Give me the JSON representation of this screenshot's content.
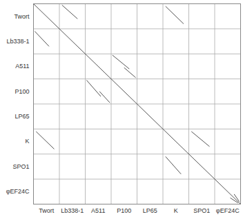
{
  "chart_data": {
    "type": "dotplot",
    "xlim": [
      0,
      8
    ],
    "ylim": [
      0,
      8
    ],
    "xticks": [
      {
        "value": 0.5,
        "label": "Twort"
      },
      {
        "value": 1.5,
        "label": "Lb338-1"
      },
      {
        "value": 2.5,
        "label": "A511"
      },
      {
        "value": 3.5,
        "label": "P100"
      },
      {
        "value": 4.5,
        "label": "LP65"
      },
      {
        "value": 5.5,
        "label": "K"
      },
      {
        "value": 6.5,
        "label": "SPO1"
      },
      {
        "value": 7.5,
        "label": "φEF24C"
      }
    ],
    "yticks": [
      {
        "value": 0.5,
        "label": "Twort"
      },
      {
        "value": 1.5,
        "label": "Lb338-1"
      },
      {
        "value": 2.5,
        "label": "A511"
      },
      {
        "value": 3.5,
        "label": "P100"
      },
      {
        "value": 4.5,
        "label": "LP65"
      },
      {
        "value": 5.5,
        "label": "K"
      },
      {
        "value": 6.5,
        "label": "SPO1"
      },
      {
        "value": 7.5,
        "label": "φEF24C"
      }
    ],
    "block_bounds": [
      1,
      2,
      3,
      4,
      5,
      6,
      7
    ],
    "color": "#555555",
    "segments": [
      {
        "x1": 0,
        "y1": 0,
        "x2": 8,
        "y2": 8
      },
      {
        "x1": 3.05,
        "y1": 2.05,
        "x2": 3.7,
        "y2": 2.6
      },
      {
        "x1": 3.5,
        "y1": 2.55,
        "x2": 3.95,
        "y2": 2.95
      },
      {
        "x1": 2.05,
        "y1": 3.05,
        "x2": 2.6,
        "y2": 3.7
      },
      {
        "x1": 2.55,
        "y1": 3.5,
        "x2": 2.95,
        "y2": 3.95
      },
      {
        "x1": 0.05,
        "y1": 1.1,
        "x2": 0.6,
        "y2": 1.7
      },
      {
        "x1": 1.1,
        "y1": 0.05,
        "x2": 1.7,
        "y2": 0.6
      },
      {
        "x1": 0.1,
        "y1": 5.1,
        "x2": 0.8,
        "y2": 5.8
      },
      {
        "x1": 5.1,
        "y1": 0.1,
        "x2": 5.8,
        "y2": 0.8
      },
      {
        "x1": 5.1,
        "y1": 6.1,
        "x2": 5.7,
        "y2": 6.8
      },
      {
        "x1": 6.1,
        "y1": 5.1,
        "x2": 6.8,
        "y2": 5.7
      },
      {
        "x1": 7.75,
        "y1": 7.6,
        "x2": 7.95,
        "y2": 7.9
      },
      {
        "x1": 7.6,
        "y1": 7.75,
        "x2": 7.9,
        "y2": 7.95
      }
    ]
  }
}
